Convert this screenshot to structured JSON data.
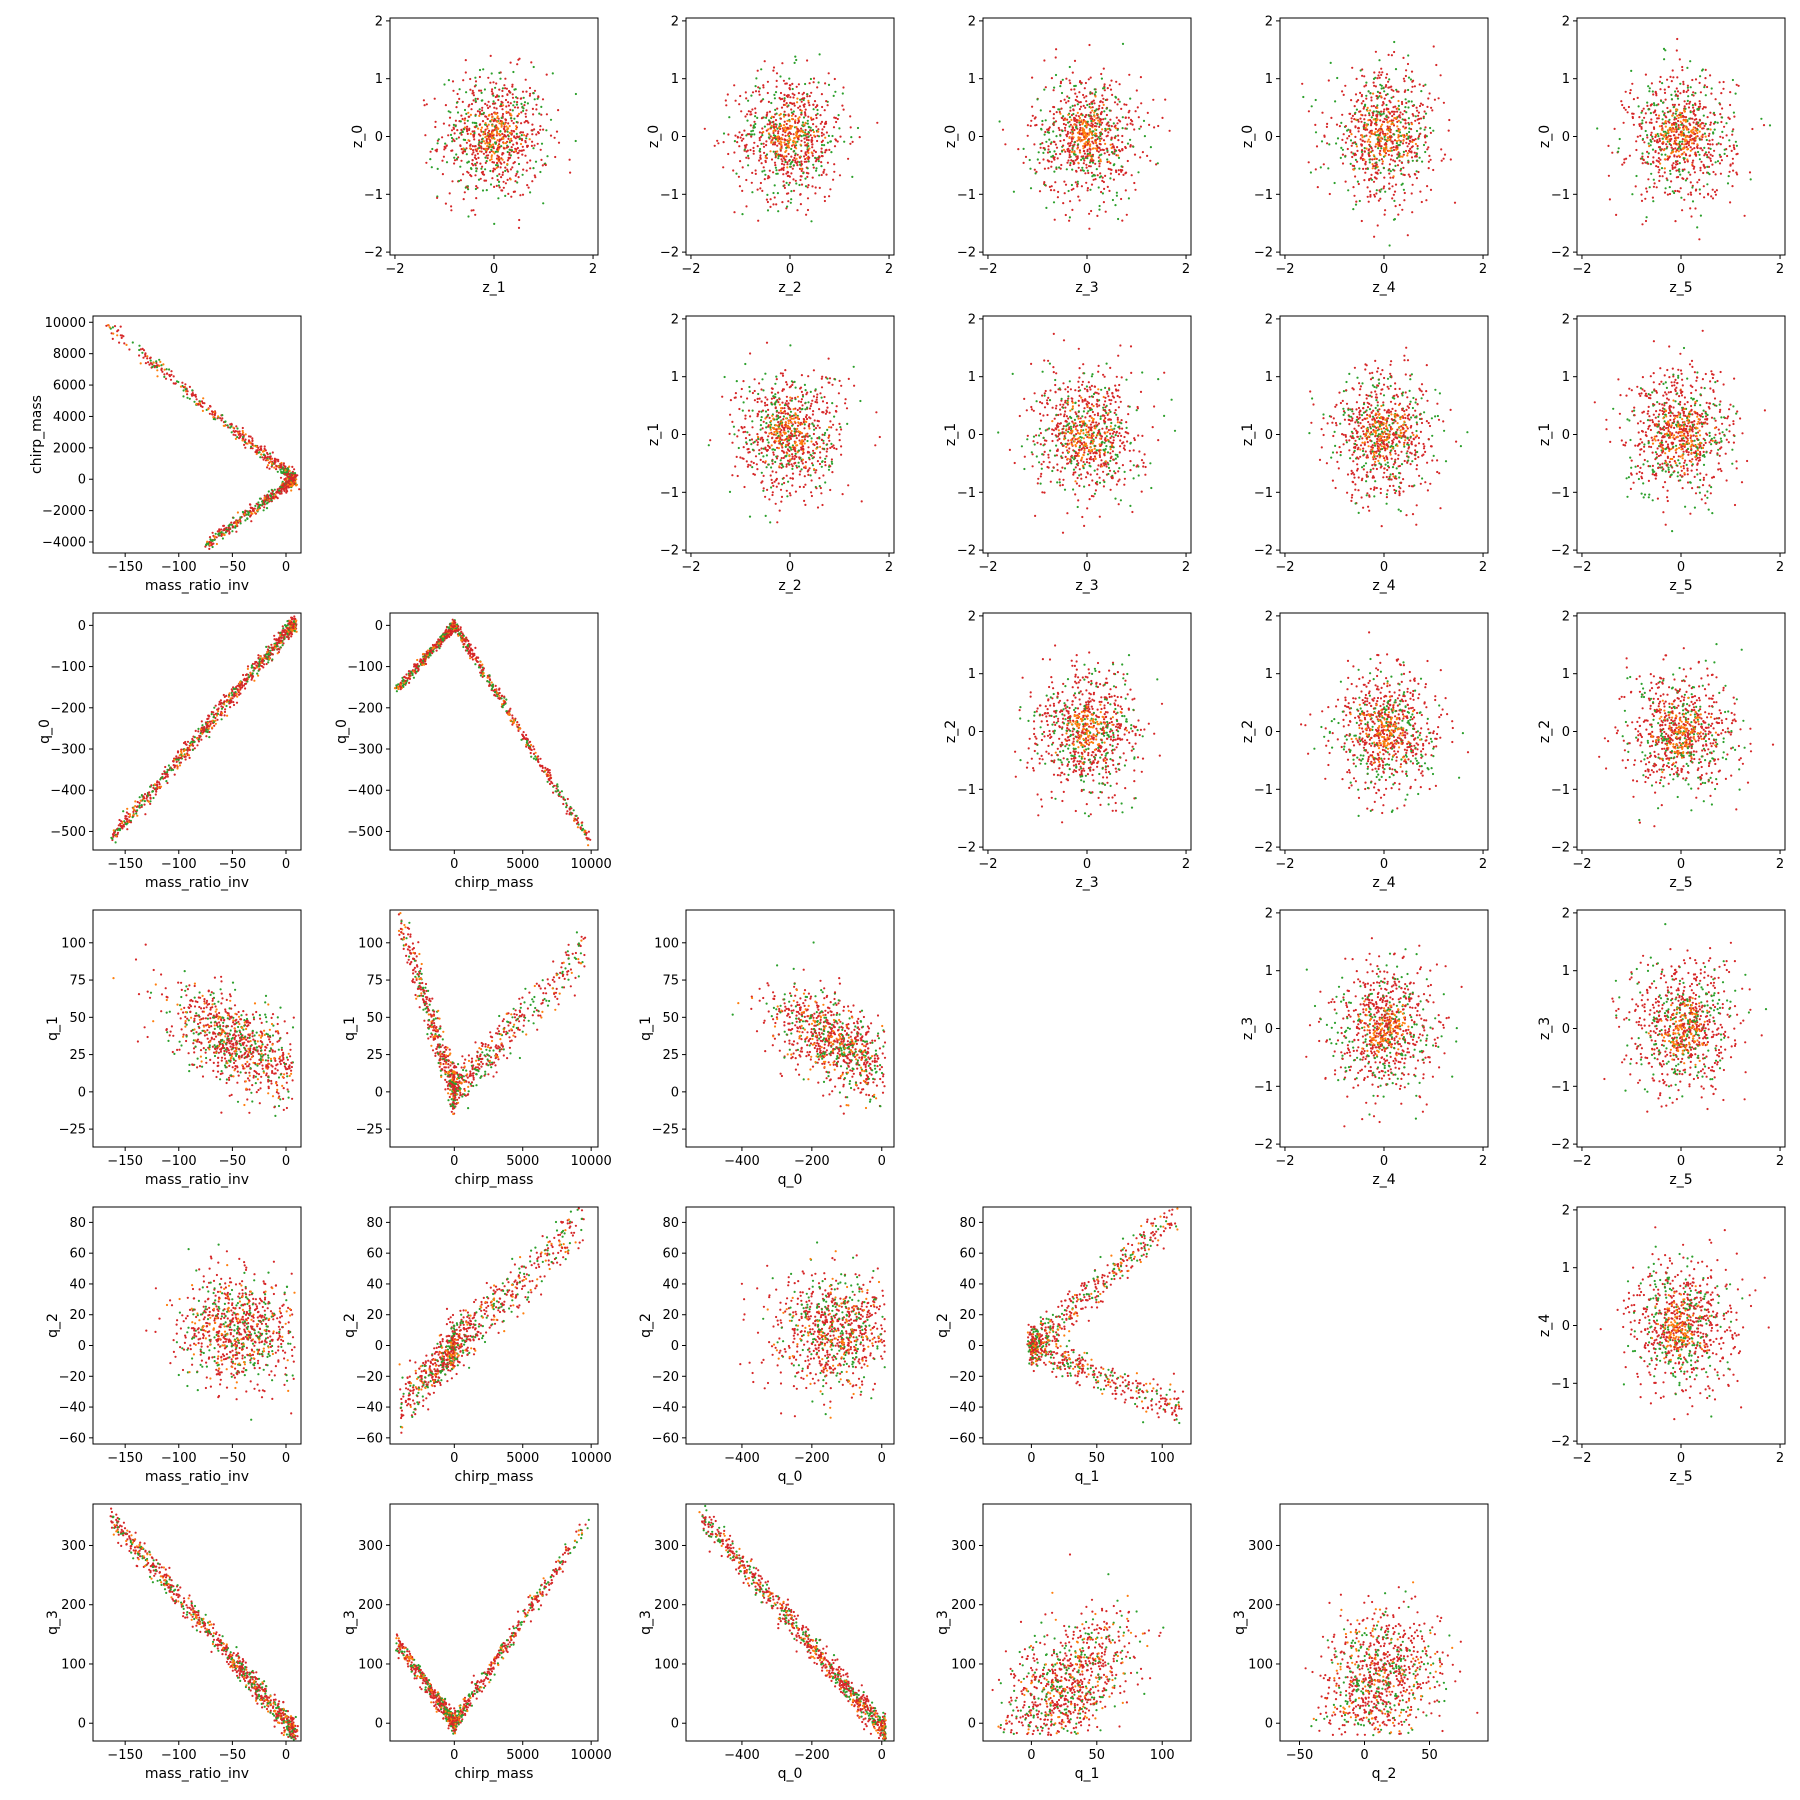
{
  "colors": {
    "series_green": "#2ca02c",
    "series_orange": "#ff7f0e",
    "series_red": "#d62728"
  },
  "chart_data": [
    {
      "type": "scatter",
      "xlabel": "z_1",
      "ylabel": "z_0",
      "xlim": [
        -2.1,
        2.1
      ],
      "ylim": [
        -2.05,
        2.05
      ],
      "xticks": [
        -2,
        0,
        2
      ],
      "yticks": [
        -2,
        -1,
        0,
        1,
        2
      ],
      "shape": "disc",
      "sx": 0.55,
      "sy": 0.55,
      "r": 1.9
    },
    {
      "type": "scatter",
      "xlabel": "z_2",
      "ylabel": "z_0",
      "xlim": [
        -2.1,
        2.1
      ],
      "ylim": [
        -2.05,
        2.05
      ],
      "xticks": [
        -2,
        0,
        2
      ],
      "yticks": [
        -2,
        -1,
        0,
        1,
        2
      ],
      "shape": "disc",
      "sx": 0.55,
      "sy": 0.55,
      "r": 1.9
    },
    {
      "type": "scatter",
      "xlabel": "z_3",
      "ylabel": "z_0",
      "xlim": [
        -2.1,
        2.1
      ],
      "ylim": [
        -2.05,
        2.05
      ],
      "xticks": [
        -2,
        0,
        2
      ],
      "yticks": [
        -2,
        -1,
        0,
        1,
        2
      ],
      "shape": "disc",
      "sx": 0.55,
      "sy": 0.55,
      "r": 1.9
    },
    {
      "type": "scatter",
      "xlabel": "z_4",
      "ylabel": "z_0",
      "xlim": [
        -2.1,
        2.1
      ],
      "ylim": [
        -2.05,
        2.05
      ],
      "xticks": [
        -2,
        0,
        2
      ],
      "yticks": [
        -2,
        -1,
        0,
        1,
        2
      ],
      "shape": "disc",
      "sx": 0.55,
      "sy": 0.55,
      "r": 1.9
    },
    {
      "type": "scatter",
      "xlabel": "z_5",
      "ylabel": "z_0",
      "xlim": [
        -2.1,
        2.1
      ],
      "ylim": [
        -2.05,
        2.05
      ],
      "xticks": [
        -2,
        0,
        2
      ],
      "yticks": [
        -2,
        -1,
        0,
        1,
        2
      ],
      "shape": "disc",
      "sx": 0.55,
      "sy": 0.55,
      "r": 1.9
    },
    {
      "type": "scatter",
      "xlabel": "mass_ratio_inv",
      "ylabel": "chirp_mass",
      "xlim": [
        -180,
        14
      ],
      "ylim": [
        -4700,
        10400
      ],
      "xticks": [
        -150,
        -100,
        -50,
        0
      ],
      "yticks": [
        -4000,
        -2000,
        0,
        2000,
        4000,
        6000,
        8000,
        10000
      ],
      "shape": "vee",
      "a": [
        -165,
        9700
      ],
      "b": [
        -75,
        -4200
      ],
      "o": [
        8,
        0
      ],
      "spread": 200
    },
    {
      "type": "scatter",
      "xlabel": "z_2",
      "ylabel": "z_1",
      "xlim": [
        -2.1,
        2.1
      ],
      "ylim": [
        -2.05,
        2.05
      ],
      "xticks": [
        -2,
        0,
        2
      ],
      "yticks": [
        -2,
        -1,
        0,
        1,
        2
      ],
      "shape": "disc",
      "sx": 0.55,
      "sy": 0.55,
      "r": 1.9
    },
    {
      "type": "scatter",
      "xlabel": "z_3",
      "ylabel": "z_1",
      "xlim": [
        -2.1,
        2.1
      ],
      "ylim": [
        -2.05,
        2.05
      ],
      "xticks": [
        -2,
        0,
        2
      ],
      "yticks": [
        -2,
        -1,
        0,
        1,
        2
      ],
      "shape": "disc",
      "sx": 0.55,
      "sy": 0.55,
      "r": 1.9
    },
    {
      "type": "scatter",
      "xlabel": "z_4",
      "ylabel": "z_1",
      "xlim": [
        -2.1,
        2.1
      ],
      "ylim": [
        -2.05,
        2.05
      ],
      "xticks": [
        -2,
        0,
        2
      ],
      "yticks": [
        -2,
        -1,
        0,
        1,
        2
      ],
      "shape": "disc",
      "sx": 0.55,
      "sy": 0.55,
      "r": 1.9
    },
    {
      "type": "scatter",
      "xlabel": "z_5",
      "ylabel": "z_1",
      "xlim": [
        -2.1,
        2.1
      ],
      "ylim": [
        -2.05,
        2.05
      ],
      "xticks": [
        -2,
        0,
        2
      ],
      "yticks": [
        -2,
        -1,
        0,
        1,
        2
      ],
      "shape": "disc",
      "sx": 0.55,
      "sy": 0.55,
      "r": 1.9
    },
    {
      "type": "scatter",
      "xlabel": "mass_ratio_inv",
      "ylabel": "q_0",
      "xlim": [
        -180,
        14
      ],
      "ylim": [
        -545,
        30
      ],
      "xticks": [
        -150,
        -100,
        -50,
        0
      ],
      "yticks": [
        -500,
        -400,
        -300,
        -200,
        -100,
        0
      ],
      "shape": "line",
      "a": [
        -162,
        -515
      ],
      "b": [
        8,
        5
      ],
      "spread": 10
    },
    {
      "type": "scatter",
      "xlabel": "chirp_mass",
      "ylabel": "q_0",
      "xlim": [
        -4700,
        10500
      ],
      "ylim": [
        -545,
        30
      ],
      "xticks": [
        0,
        5000,
        10000
      ],
      "yticks": [
        -500,
        -400,
        -300,
        -200,
        -100,
        0
      ],
      "shape": "vee",
      "a": [
        -4300,
        -160
      ],
      "b": [
        9800,
        -520
      ],
      "o": [
        0,
        0
      ],
      "spread": 6
    },
    {
      "type": "scatter",
      "xlabel": "z_3",
      "ylabel": "z_2",
      "xlim": [
        -2.1,
        2.1
      ],
      "ylim": [
        -2.05,
        2.05
      ],
      "xticks": [
        -2,
        0,
        2
      ],
      "yticks": [
        -2,
        -1,
        0,
        1,
        2
      ],
      "shape": "disc",
      "sx": 0.55,
      "sy": 0.55,
      "r": 1.9
    },
    {
      "type": "scatter",
      "xlabel": "z_4",
      "ylabel": "z_2",
      "xlim": [
        -2.1,
        2.1
      ],
      "ylim": [
        -2.05,
        2.05
      ],
      "xticks": [
        -2,
        0,
        2
      ],
      "yticks": [
        -2,
        -1,
        0,
        1,
        2
      ],
      "shape": "disc",
      "sx": 0.55,
      "sy": 0.55,
      "r": 1.9
    },
    {
      "type": "scatter",
      "xlabel": "z_5",
      "ylabel": "z_2",
      "xlim": [
        -2.1,
        2.1
      ],
      "ylim": [
        -2.05,
        2.05
      ],
      "xticks": [
        -2,
        0,
        2
      ],
      "yticks": [
        -2,
        -1,
        0,
        1,
        2
      ],
      "shape": "disc",
      "sx": 0.55,
      "sy": 0.55,
      "r": 1.9
    },
    {
      "type": "scatter",
      "xlabel": "mass_ratio_inv",
      "ylabel": "q_1",
      "xlim": [
        -180,
        14
      ],
      "ylim": [
        -37,
        122
      ],
      "xticks": [
        -150,
        -100,
        -50,
        0
      ],
      "yticks": [
        -25,
        0,
        25,
        50,
        75,
        100
      ],
      "shape": "blob",
      "cx": -45,
      "cy": 32,
      "sx": 32,
      "sy": 18,
      "rho": -0.6,
      "xr": [
        -165,
        8
      ],
      "yr": [
        -35,
        115
      ]
    },
    {
      "type": "scatter",
      "xlabel": "chirp_mass",
      "ylabel": "q_1",
      "xlim": [
        -4700,
        10500
      ],
      "ylim": [
        -37,
        122
      ],
      "xticks": [
        0,
        5000,
        10000
      ],
      "yticks": [
        -25,
        0,
        25,
        50,
        75,
        100
      ],
      "shape": "vee",
      "a": [
        -4000,
        115
      ],
      "b": [
        9500,
        95
      ],
      "o": [
        0,
        0
      ],
      "spread": 8
    },
    {
      "type": "scatter",
      "xlabel": "q_0",
      "ylabel": "q_1",
      "xlim": [
        -560,
        35
      ],
      "ylim": [
        -37,
        122
      ],
      "xticks": [
        -400,
        -200,
        0
      ],
      "yticks": [
        -25,
        0,
        25,
        50,
        75,
        100
      ],
      "shape": "blob",
      "cx": -130,
      "cy": 32,
      "sx": 95,
      "sy": 18,
      "rho": -0.6,
      "xr": [
        -520,
        10
      ],
      "yr": [
        -35,
        115
      ]
    },
    {
      "type": "scatter",
      "xlabel": "z_4",
      "ylabel": "z_3",
      "xlim": [
        -2.1,
        2.1
      ],
      "ylim": [
        -2.05,
        2.05
      ],
      "xticks": [
        -2,
        0,
        2
      ],
      "yticks": [
        -2,
        -1,
        0,
        1,
        2
      ],
      "shape": "disc",
      "sx": 0.55,
      "sy": 0.55,
      "r": 1.9
    },
    {
      "type": "scatter",
      "xlabel": "z_5",
      "ylabel": "z_3",
      "xlim": [
        -2.1,
        2.1
      ],
      "ylim": [
        -2.05,
        2.05
      ],
      "xticks": [
        -2,
        0,
        2
      ],
      "yticks": [
        -2,
        -1,
        0,
        1,
        2
      ],
      "shape": "disc",
      "sx": 0.55,
      "sy": 0.55,
      "r": 1.9
    },
    {
      "type": "scatter",
      "xlabel": "mass_ratio_inv",
      "ylabel": "q_2",
      "xlim": [
        -180,
        14
      ],
      "ylim": [
        -64,
        90
      ],
      "xticks": [
        -150,
        -100,
        -50,
        0
      ],
      "yticks": [
        -60,
        -40,
        -20,
        0,
        20,
        40,
        60,
        80
      ],
      "shape": "blob",
      "cx": -45,
      "cy": 10,
      "sx": 28,
      "sy": 18,
      "rho": 0.0,
      "xr": [
        -165,
        8
      ],
      "yr": [
        -58,
        85
      ]
    },
    {
      "type": "scatter",
      "xlabel": "chirp_mass",
      "ylabel": "q_2",
      "xlim": [
        -4700,
        10500
      ],
      "ylim": [
        -64,
        90
      ],
      "xticks": [
        0,
        5000,
        10000
      ],
      "yticks": [
        -60,
        -40,
        -20,
        0,
        20,
        40,
        60,
        80
      ],
      "shape": "vee",
      "a": [
        -4000,
        -40
      ],
      "b": [
        9500,
        80
      ],
      "o": [
        0,
        0
      ],
      "spread": 8
    },
    {
      "type": "scatter",
      "xlabel": "q_0",
      "ylabel": "q_2",
      "xlim": [
        -560,
        35
      ],
      "ylim": [
        -64,
        90
      ],
      "xticks": [
        -400,
        -200,
        0
      ],
      "yticks": [
        -60,
        -40,
        -20,
        0,
        20,
        40,
        60,
        80
      ],
      "shape": "blob",
      "cx": -130,
      "cy": 10,
      "sx": 90,
      "sy": 18,
      "rho": 0.0,
      "xr": [
        -520,
        10
      ],
      "yr": [
        -58,
        85
      ]
    },
    {
      "type": "scatter",
      "xlabel": "q_1",
      "ylabel": "q_2",
      "xlim": [
        -37,
        122
      ],
      "ylim": [
        -64,
        90
      ],
      "xticks": [
        0,
        50,
        100
      ],
      "yticks": [
        -60,
        -40,
        -20,
        0,
        20,
        40,
        60,
        80
      ],
      "shape": "vee",
      "a": [
        110,
        85
      ],
      "b": [
        115,
        -42
      ],
      "o": [
        0,
        0
      ],
      "spread": 6
    },
    {
      "type": "scatter",
      "xlabel": "z_5",
      "ylabel": "z_4",
      "xlim": [
        -2.1,
        2.1
      ],
      "ylim": [
        -2.05,
        2.05
      ],
      "xticks": [
        -2,
        0,
        2
      ],
      "yticks": [
        -2,
        -1,
        0,
        1,
        2
      ],
      "shape": "disc",
      "sx": 0.55,
      "sy": 0.55,
      "r": 1.9
    },
    {
      "type": "scatter",
      "xlabel": "mass_ratio_inv",
      "ylabel": "q_3",
      "xlim": [
        -180,
        14
      ],
      "ylim": [
        -30,
        370
      ],
      "xticks": [
        -150,
        -100,
        -50,
        0
      ],
      "yticks": [
        0,
        100,
        200,
        300
      ],
      "shape": "line",
      "a": [
        -165,
        350
      ],
      "b": [
        8,
        -15
      ],
      "spread": 10
    },
    {
      "type": "scatter",
      "xlabel": "chirp_mass",
      "ylabel": "q_3",
      "xlim": [
        -4700,
        10500
      ],
      "ylim": [
        -30,
        370
      ],
      "xticks": [
        0,
        5000,
        10000
      ],
      "yticks": [
        0,
        100,
        200,
        300
      ],
      "shape": "vee",
      "a": [
        -4300,
        140
      ],
      "b": [
        9700,
        340
      ],
      "o": [
        0,
        0
      ],
      "spread": 8
    },
    {
      "type": "scatter",
      "xlabel": "q_0",
      "ylabel": "q_3",
      "xlim": [
        -560,
        35
      ],
      "ylim": [
        -30,
        370
      ],
      "xticks": [
        -400,
        -200,
        0
      ],
      "yticks": [
        0,
        100,
        200,
        300
      ],
      "shape": "line",
      "a": [
        -520,
        350
      ],
      "b": [
        10,
        -15
      ],
      "spread": 12
    },
    {
      "type": "scatter",
      "xlabel": "q_1",
      "ylabel": "q_3",
      "xlim": [
        -37,
        122
      ],
      "ylim": [
        -30,
        370
      ],
      "xticks": [
        0,
        50,
        100
      ],
      "yticks": [
        0,
        100,
        200,
        300
      ],
      "shape": "blob",
      "cx": 30,
      "cy": 70,
      "sx": 25,
      "sy": 60,
      "rho": 0.5,
      "xr": [
        -30,
        115
      ],
      "yr": [
        -20,
        350
      ]
    },
    {
      "type": "scatter",
      "xlabel": "q_2",
      "ylabel": "q_3",
      "xlim": [
        -65,
        95
      ],
      "ylim": [
        -30,
        370
      ],
      "xticks": [
        -50,
        0,
        50
      ],
      "yticks": [
        0,
        100,
        200,
        300
      ],
      "shape": "blob",
      "cx": 10,
      "cy": 70,
      "sx": 22,
      "sy": 60,
      "rho": 0.2,
      "xr": [
        -60,
        88
      ],
      "yr": [
        -20,
        350
      ]
    }
  ]
}
